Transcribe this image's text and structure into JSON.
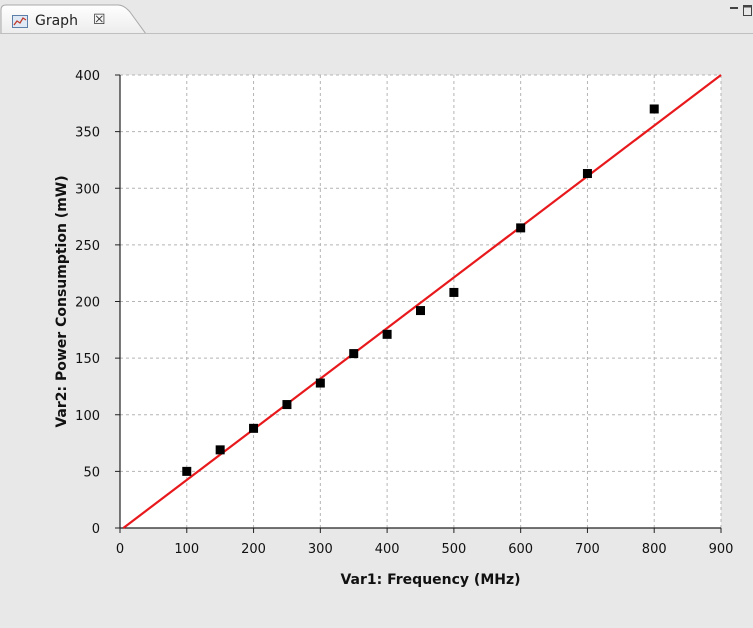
{
  "tab": {
    "title": "Graph",
    "close_glyph": "☒",
    "icon": "graph-view-icon"
  },
  "window_controls": {
    "minimize_icon": "minimize-icon",
    "maximize_icon": "maximize-icon"
  },
  "chart_data": {
    "type": "scatter",
    "xlabel": "Var1: Frequency (MHz)",
    "ylabel": "Var2: Power Consumption (mW)",
    "xlim": [
      0,
      900
    ],
    "ylim": [
      0,
      400
    ],
    "xticks": [
      0,
      100,
      200,
      300,
      400,
      500,
      600,
      700,
      800,
      900
    ],
    "yticks": [
      0,
      50,
      100,
      150,
      200,
      250,
      300,
      350,
      400
    ],
    "grid": true,
    "points": {
      "x": [
        100,
        150,
        200,
        250,
        300,
        350,
        400,
        450,
        500,
        600,
        700,
        800
      ],
      "y": [
        50,
        69,
        88,
        109,
        128,
        154,
        171,
        192,
        208,
        265,
        313,
        370
      ],
      "marker": "square",
      "color": "#000000"
    },
    "fit_line": {
      "x": [
        5,
        900
      ],
      "y": [
        0,
        400
      ],
      "color": "#e8191c"
    },
    "plot_background": "#ffffff",
    "page_background": "#e8e8e8"
  }
}
